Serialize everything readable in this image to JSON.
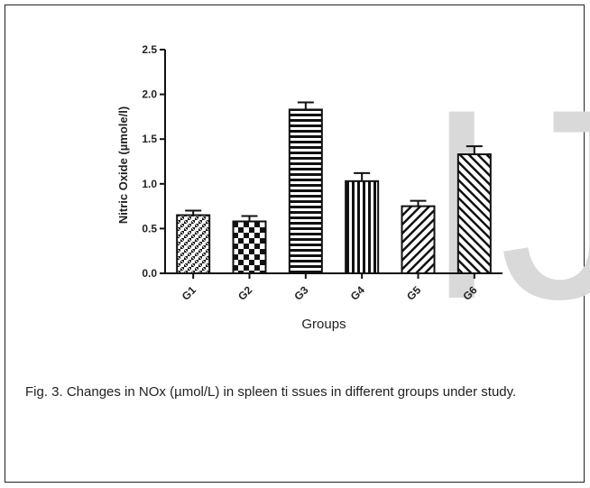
{
  "figure": {
    "caption": "Fig. 3. Changes in NOx (µmol/L) in spleen ti   ssues in different groups under study.",
    "watermark_text": "IJS"
  },
  "chart_data": {
    "type": "bar",
    "categories": [
      "G1",
      "G2",
      "G3",
      "G4",
      "G5",
      "G6"
    ],
    "values": [
      0.65,
      0.58,
      1.83,
      1.03,
      0.75,
      1.33
    ],
    "errors": [
      0.05,
      0.06,
      0.08,
      0.09,
      0.06,
      0.09
    ],
    "patterns": [
      "crosshatch-small",
      "checkerboard",
      "horizontal-lines",
      "vertical-lines",
      "diagonal-right",
      "diagonal-left"
    ],
    "title": "",
    "xlabel": "Groups",
    "ylabel": "Nitric Oxide (µmole/l)",
    "ylim": [
      0,
      2.5
    ],
    "yticks": [
      "0.0",
      "0.5",
      "1.0",
      "1.5",
      "2.0",
      "2.5"
    ],
    "grid": false,
    "colors": {
      "bar_stroke": "#111111",
      "axis": "#111111",
      "watermark": "#d9d9d9"
    }
  }
}
